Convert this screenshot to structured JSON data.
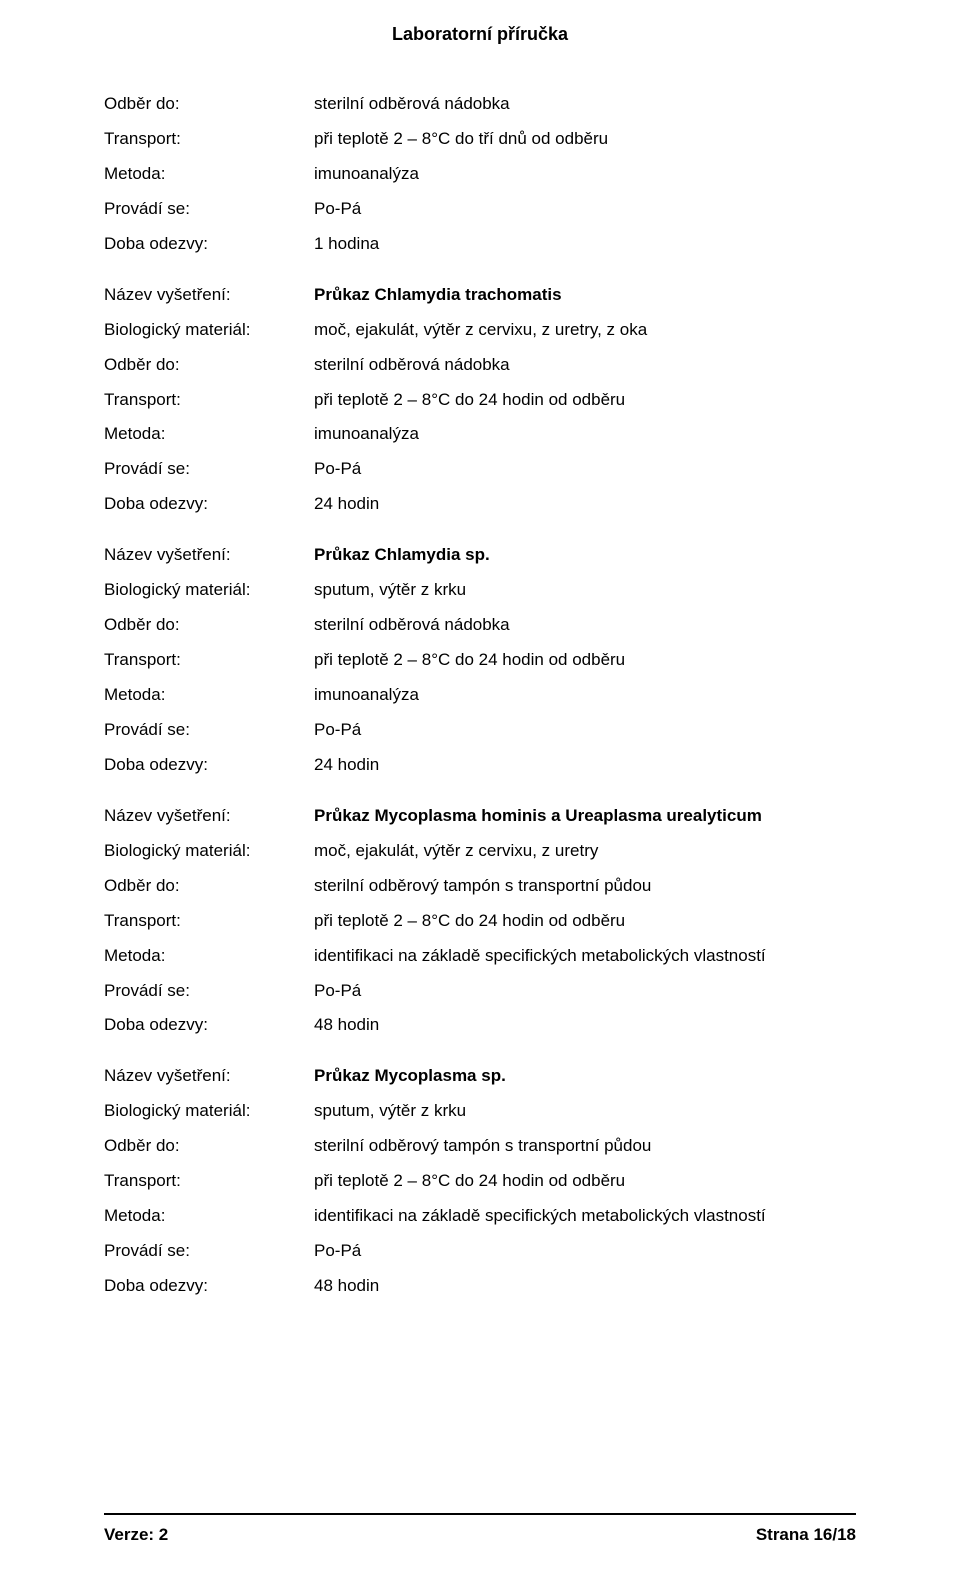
{
  "page": {
    "title": "Laboratorní příručka",
    "footer": {
      "version_label": "Verze: 2",
      "page_label": "Strana 16/18"
    }
  },
  "labels": {
    "odber_do": "Odběr do:",
    "transport": "Transport:",
    "metoda": "Metoda:",
    "provadi_se": "Provádí se:",
    "doba_odezvy": "Doba odezvy:",
    "nazev_vysetreni": "Název vyšetření:",
    "biologicky_material": "Biologický materiál:"
  },
  "sections": [
    {
      "rows": [
        {
          "label_key": "odber_do",
          "value": "sterilní odběrová nádobka"
        },
        {
          "label_key": "transport",
          "value": "při teplotě 2 – 8°C do tří dnů od odběru"
        },
        {
          "label_key": "metoda",
          "value": "imunoanalýza"
        },
        {
          "label_key": "provadi_se",
          "value": "Po-Pá"
        },
        {
          "label_key": "doba_odezvy",
          "value": "1 hodina"
        }
      ]
    },
    {
      "rows": [
        {
          "label_key": "nazev_vysetreni",
          "value": "Průkaz Chlamydia trachomatis",
          "bold": true
        },
        {
          "label_key": "biologicky_material",
          "value": "moč, ejakulát, výtěr z cervixu, z uretry, z oka"
        },
        {
          "label_key": "odber_do",
          "value": "sterilní odběrová nádobka"
        },
        {
          "label_key": "transport",
          "value": "při teplotě 2 – 8°C do 24 hodin od odběru"
        },
        {
          "label_key": "metoda",
          "value": "imunoanalýza"
        },
        {
          "label_key": "provadi_se",
          "value": "Po-Pá"
        },
        {
          "label_key": "doba_odezvy",
          "value": "24 hodin"
        }
      ]
    },
    {
      "rows": [
        {
          "label_key": "nazev_vysetreni",
          "value": "Průkaz Chlamydia sp.",
          "bold": true
        },
        {
          "label_key": "biologicky_material",
          "value": "sputum, výtěr z  krku"
        },
        {
          "label_key": "odber_do",
          "value": "sterilní odběrová nádobka"
        },
        {
          "label_key": "transport",
          "value": "při teplotě 2 – 8°C do 24 hodin od odběru"
        },
        {
          "label_key": "metoda",
          "value": "imunoanalýza"
        },
        {
          "label_key": "provadi_se",
          "value": "Po-Pá"
        },
        {
          "label_key": "doba_odezvy",
          "value": "24 hodin"
        }
      ]
    },
    {
      "rows": [
        {
          "label_key": "nazev_vysetreni",
          "value": "Průkaz Mycoplasma hominis a Ureaplasma urealyticum",
          "bold": true
        },
        {
          "label_key": "biologicky_material",
          "value": "moč, ejakulát, výtěr z cervixu, z uretry"
        },
        {
          "label_key": "odber_do",
          "value": "sterilní odběrový tampón s transportní půdou"
        },
        {
          "label_key": "transport",
          "value": "při teplotě 2 – 8°C do 24 hodin od odběru"
        },
        {
          "label_key": "metoda",
          "value": "identifikaci na základě specifických metabolických vlastností"
        },
        {
          "label_key": "provadi_se",
          "value": "Po-Pá"
        },
        {
          "label_key": "doba_odezvy",
          "value": "48 hodin"
        }
      ]
    },
    {
      "rows": [
        {
          "label_key": "nazev_vysetreni",
          "value": "Průkaz Mycoplasma sp.",
          "bold": true
        },
        {
          "label_key": "biologicky_material",
          "value": "sputum, výtěr z krku"
        },
        {
          "label_key": "odber_do",
          "value": "sterilní odběrový tampón s transportní půdou"
        },
        {
          "label_key": "transport",
          "value": "při teplotě 2 – 8°C do 24 hodin od odběru"
        },
        {
          "label_key": "metoda",
          "value": "identifikaci na základě specifických metabolických vlastností"
        },
        {
          "label_key": "provadi_se",
          "value": "Po-Pá"
        },
        {
          "label_key": "doba_odezvy",
          "value": "48 hodin"
        }
      ]
    }
  ]
}
